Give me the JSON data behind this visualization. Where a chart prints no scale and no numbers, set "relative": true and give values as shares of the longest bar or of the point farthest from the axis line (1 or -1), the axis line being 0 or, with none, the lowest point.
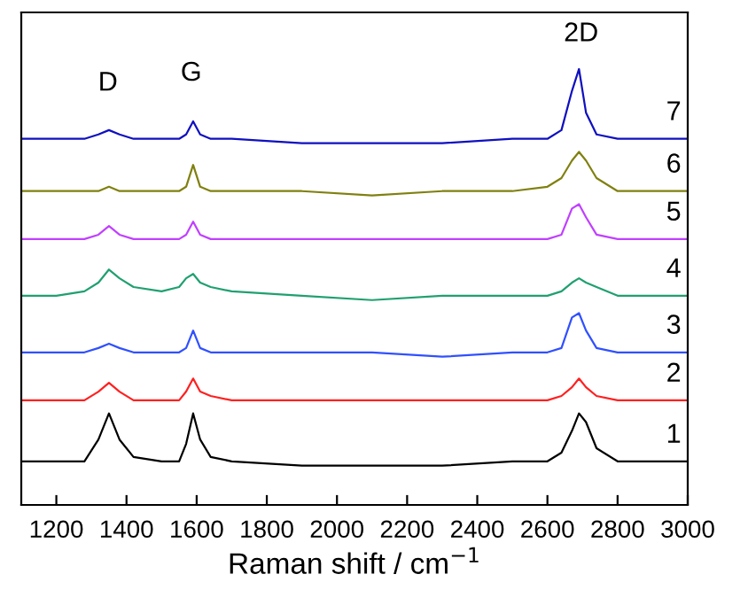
{
  "chart_data": {
    "type": "line",
    "relative": true,
    "xlabel": "Raman shift / cm$^{−1}$",
    "xlim": [
      1100,
      3000
    ],
    "xticks": [
      1200,
      1400,
      1600,
      1800,
      2000,
      2200,
      2400,
      2600,
      2800,
      3000
    ],
    "grid": false,
    "legend": false,
    "x": [
      1100,
      1200,
      1280,
      1320,
      1350,
      1380,
      1420,
      1500,
      1550,
      1570,
      1590,
      1610,
      1640,
      1700,
      1900,
      2100,
      2300,
      2500,
      2600,
      2640,
      2670,
      2690,
      2710,
      2740,
      2800,
      2900,
      3000
    ],
    "series": [
      {
        "name": "1",
        "color": "#000000",
        "values": [
          0.1,
          0.1,
          0.1,
          0.15,
          0.21,
          0.15,
          0.11,
          0.1,
          0.1,
          0.14,
          0.21,
          0.15,
          0.11,
          0.1,
          0.09,
          0.09,
          0.09,
          0.1,
          0.1,
          0.12,
          0.17,
          0.21,
          0.19,
          0.13,
          0.1,
          0.1,
          0.1
        ]
      },
      {
        "name": "2",
        "color": "#ff2020",
        "values": [
          0.24,
          0.24,
          0.24,
          0.26,
          0.28,
          0.26,
          0.24,
          0.24,
          0.24,
          0.26,
          0.29,
          0.26,
          0.25,
          0.24,
          0.24,
          0.24,
          0.24,
          0.24,
          0.24,
          0.25,
          0.27,
          0.29,
          0.27,
          0.25,
          0.24,
          0.24,
          0.24
        ]
      },
      {
        "name": "3",
        "color": "#3050ff",
        "values": [
          0.35,
          0.35,
          0.35,
          0.36,
          0.37,
          0.36,
          0.35,
          0.35,
          0.35,
          0.36,
          0.4,
          0.36,
          0.35,
          0.35,
          0.35,
          0.35,
          0.34,
          0.35,
          0.35,
          0.36,
          0.43,
          0.44,
          0.4,
          0.36,
          0.35,
          0.35,
          0.35
        ]
      },
      {
        "name": "4",
        "color": "#20a070",
        "values": [
          0.48,
          0.48,
          0.49,
          0.51,
          0.54,
          0.52,
          0.5,
          0.49,
          0.5,
          0.52,
          0.53,
          0.51,
          0.5,
          0.49,
          0.48,
          0.47,
          0.48,
          0.48,
          0.48,
          0.49,
          0.51,
          0.52,
          0.51,
          0.5,
          0.48,
          0.48,
          0.48
        ]
      },
      {
        "name": "5",
        "color": "#c040ff",
        "values": [
          0.61,
          0.61,
          0.61,
          0.62,
          0.64,
          0.62,
          0.61,
          0.61,
          0.61,
          0.62,
          0.65,
          0.62,
          0.61,
          0.61,
          0.61,
          0.61,
          0.61,
          0.61,
          0.61,
          0.62,
          0.68,
          0.69,
          0.66,
          0.62,
          0.61,
          0.61,
          0.61
        ]
      },
      {
        "name": "6",
        "color": "#808010",
        "values": [
          0.72,
          0.72,
          0.72,
          0.72,
          0.73,
          0.72,
          0.72,
          0.72,
          0.72,
          0.73,
          0.78,
          0.73,
          0.72,
          0.72,
          0.72,
          0.71,
          0.72,
          0.72,
          0.73,
          0.75,
          0.79,
          0.81,
          0.79,
          0.75,
          0.72,
          0.72,
          0.72
        ]
      },
      {
        "name": "7",
        "color": "#1010c0",
        "values": [
          0.84,
          0.84,
          0.84,
          0.85,
          0.86,
          0.85,
          0.84,
          0.84,
          0.84,
          0.85,
          0.88,
          0.85,
          0.84,
          0.84,
          0.83,
          0.83,
          0.83,
          0.84,
          0.84,
          0.86,
          0.95,
          1.0,
          0.9,
          0.85,
          0.84,
          0.84,
          0.84
        ]
      }
    ],
    "annotations": [
      "D",
      "G",
      "2D"
    ]
  }
}
